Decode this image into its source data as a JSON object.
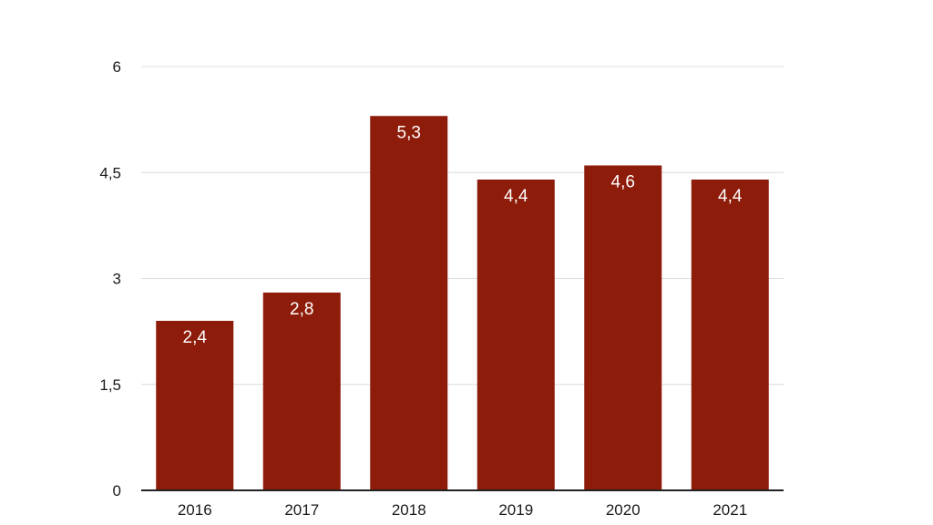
{
  "chart_data": {
    "type": "bar",
    "title": "",
    "xlabel": "",
    "ylabel": "",
    "categories": [
      "2016",
      "2017",
      "2018",
      "2019",
      "2020",
      "2021"
    ],
    "values": [
      2.4,
      2.8,
      5.3,
      4.4,
      4.6,
      4.4
    ],
    "data_labels": [
      "2,4",
      "2,8",
      "5,3",
      "4,4",
      "4,6",
      "4,4"
    ],
    "ylim": [
      0,
      6
    ],
    "y_ticks": [
      0,
      1.5,
      3,
      4.5,
      6
    ],
    "y_tick_labels": [
      "0",
      "1,5",
      "3",
      "4,5",
      "6"
    ],
    "grid": true,
    "legend": "none",
    "bar_color": "#8e1c0a",
    "grid_color": "#dcdcdc",
    "axis_color": "#222222"
  }
}
